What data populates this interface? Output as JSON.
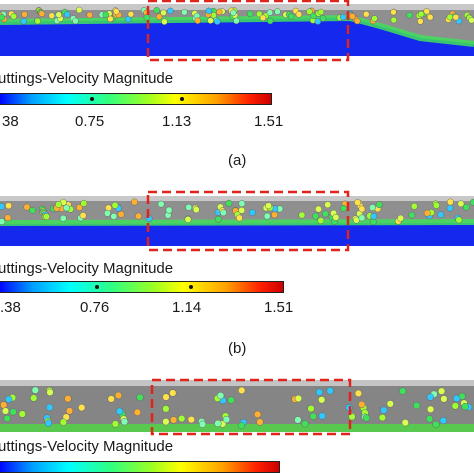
{
  "panels": [
    {
      "colorbar_title": "uttings-Velocity Magnitude",
      "ticks": [
        "38",
        "0.75",
        "1.13",
        "1.51"
      ],
      "caption": "(a)",
      "colors": {
        "bed": "#1a2cf0",
        "pipe": "#9a9a9a",
        "highlight": "#e0241b"
      }
    },
    {
      "colorbar_title": "uttings-Velocity Magnitude",
      "ticks": ".38",
      "ticks_list": [
        ".38",
        "0.76",
        "1.14",
        "1.51"
      ],
      "caption": "(b)",
      "colors": {
        "bed": "#1a2cf0",
        "pipe": "#9a9a9a",
        "highlight": "#e0241b"
      }
    },
    {
      "colorbar_title": "uttings-Velocity Magnitude",
      "caption": "",
      "colors": {
        "bed": "#5cc850",
        "pipe": "#8c8c8c",
        "highlight": "#e0241b"
      }
    }
  ]
}
